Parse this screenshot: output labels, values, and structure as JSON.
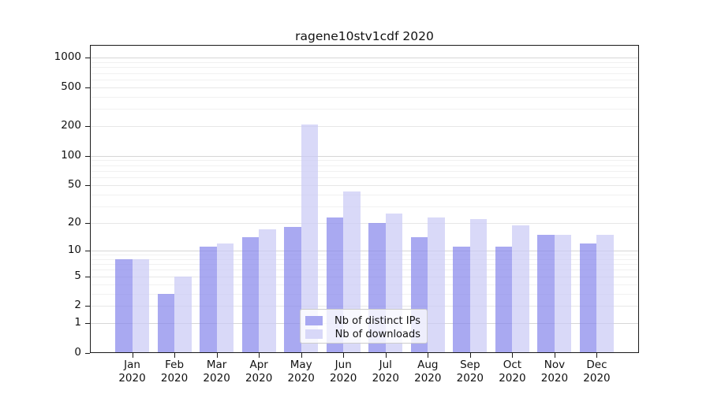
{
  "title": "ragene10stv1cdf 2020",
  "chart_data": {
    "type": "bar",
    "title": "ragene10stv1cdf 2020",
    "categories": [
      "Jan 2020",
      "Feb 2020",
      "Mar 2020",
      "Apr 2020",
      "May 2020",
      "Jun 2020",
      "Jul 2020",
      "Aug 2020",
      "Sep 2020",
      "Oct 2020",
      "Nov 2020",
      "Dec 2020"
    ],
    "series": [
      {
        "name": "Nb of distinct IPs",
        "color": "#a8a8f1",
        "fill": "rgba(136,136,236,0.72)",
        "values": [
          8,
          3,
          11,
          14,
          18,
          23,
          20,
          14,
          11,
          11,
          15,
          12
        ]
      },
      {
        "name": "Nb of downloads",
        "color": "#d8d8f8",
        "fill": "rgba(202,202,245,0.72)",
        "values": [
          8,
          5,
          12,
          17,
          210,
          43,
          25,
          23,
          22,
          19,
          15,
          15
        ]
      }
    ],
    "xlabel": "",
    "ylabel": "",
    "yscale": "log1p",
    "ylim": [
      0,
      1200
    ],
    "y_ticks": [
      0,
      1,
      2,
      5,
      10,
      20,
      50,
      100,
      200,
      500,
      1000
    ],
    "grid": true,
    "gridline_values": {
      "major": [
        1,
        10,
        100,
        1000
      ],
      "mid": [
        2,
        5,
        20,
        50,
        200,
        500
      ],
      "minor": [
        3,
        4,
        6,
        7,
        8,
        9,
        30,
        40,
        60,
        70,
        80,
        90,
        300,
        400,
        600,
        700,
        800,
        900
      ]
    },
    "grid_colors": {
      "major": "#d6d6d6",
      "mid": "#e7e7e7",
      "minor": "#f1f1f1"
    },
    "legend_position": "lower center inside"
  }
}
